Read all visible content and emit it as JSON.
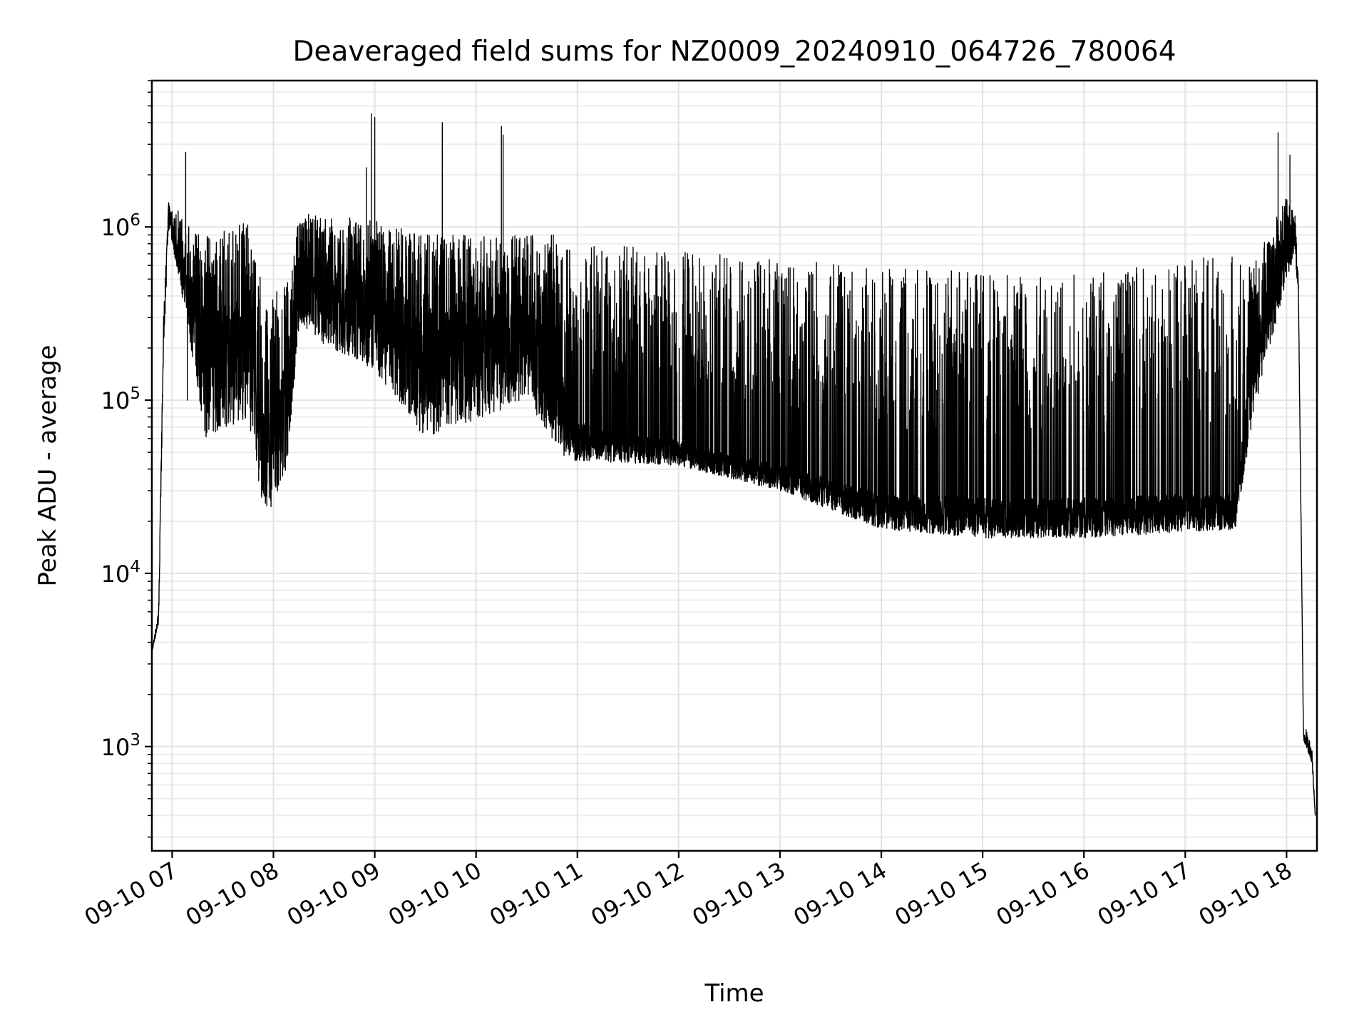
{
  "chart_data": {
    "type": "line",
    "title": "Deaveraged field sums for NZ0009_20240910_064726_780064",
    "xlabel": "Time",
    "ylabel": "Peak ADU - average",
    "yscale": "log",
    "xlim": [
      "2024-09-10 06:48",
      "2024-09-10 18:18"
    ],
    "ylim": [
      250,
      7000000
    ],
    "grid": true,
    "line_color": "#000000",
    "x_ticks": [
      {
        "t": "2024-09-10 07:00",
        "label": "09-10 07"
      },
      {
        "t": "2024-09-10 08:00",
        "label": "09-10 08"
      },
      {
        "t": "2024-09-10 09:00",
        "label": "09-10 09"
      },
      {
        "t": "2024-09-10 10:00",
        "label": "09-10 10"
      },
      {
        "t": "2024-09-10 11:00",
        "label": "09-10 11"
      },
      {
        "t": "2024-09-10 12:00",
        "label": "09-10 12"
      },
      {
        "t": "2024-09-10 13:00",
        "label": "09-10 13"
      },
      {
        "t": "2024-09-10 14:00",
        "label": "09-10 14"
      },
      {
        "t": "2024-09-10 15:00",
        "label": "09-10 15"
      },
      {
        "t": "2024-09-10 16:00",
        "label": "09-10 16"
      },
      {
        "t": "2024-09-10 17:00",
        "label": "09-10 17"
      },
      {
        "t": "2024-09-10 18:00",
        "label": "09-10 18"
      }
    ],
    "y_ticks": [
      {
        "value": 1000,
        "base": "10",
        "exp": "3"
      },
      {
        "value": 10000,
        "base": "10",
        "exp": "4"
      },
      {
        "value": 100000,
        "base": "10",
        "exp": "5"
      },
      {
        "value": 1000000,
        "base": "10",
        "exp": "6"
      }
    ],
    "series": [
      {
        "envelope": [
          {
            "t": "2024-09-10 06:48",
            "low": 3500,
            "base": 3500,
            "high": 3500
          },
          {
            "t": "2024-09-10 06:52",
            "low": 5000,
            "base": 6000,
            "high": 6000
          },
          {
            "t": "2024-09-10 06:55",
            "low": 200000,
            "base": 300000,
            "high": 300000
          },
          {
            "t": "2024-09-10 06:58",
            "low": 1000000,
            "base": 1300000,
            "high": 1500000
          },
          {
            "t": "2024-09-10 07:05",
            "low": 450000,
            "base": 700000,
            "high": 1200000
          },
          {
            "t": "2024-09-10 07:20",
            "low": 60000,
            "base": 250000,
            "high": 900000
          },
          {
            "t": "2024-09-10 07:45",
            "low": 80000,
            "base": 300000,
            "high": 1100000
          },
          {
            "t": "2024-09-10 07:55",
            "low": 20000,
            "base": 60000,
            "high": 400000
          },
          {
            "t": "2024-09-10 08:08",
            "low": 40000,
            "base": 150000,
            "high": 500000
          },
          {
            "t": "2024-09-10 08:15",
            "low": 250000,
            "base": 600000,
            "high": 1200000
          },
          {
            "t": "2024-09-10 09:00",
            "low": 150000,
            "base": 450000,
            "high": 1100000
          },
          {
            "t": "2024-09-10 09:30",
            "low": 60000,
            "base": 250000,
            "high": 900000
          },
          {
            "t": "2024-09-10 10:30",
            "low": 100000,
            "base": 350000,
            "high": 900000
          },
          {
            "t": "2024-09-10 10:50",
            "low": 50000,
            "base": 200000,
            "high": 900000
          },
          {
            "t": "2024-09-10 10:55",
            "low": 45000,
            "base": 70000,
            "high": 800000
          },
          {
            "t": "2024-09-10 12:00",
            "low": 42000,
            "base": 55000,
            "high": 750000
          },
          {
            "t": "2024-09-10 13:00",
            "low": 30000,
            "base": 40000,
            "high": 650000
          },
          {
            "t": "2024-09-10 14:00",
            "low": 18000,
            "base": 27000,
            "high": 600000
          },
          {
            "t": "2024-09-10 15:00",
            "low": 16000,
            "base": 25000,
            "high": 550000
          },
          {
            "t": "2024-09-10 16:00",
            "low": 16000,
            "base": 25000,
            "high": 550000
          },
          {
            "t": "2024-09-10 17:30",
            "low": 18000,
            "base": 27000,
            "high": 700000
          },
          {
            "t": "2024-09-10 17:40",
            "low": 80000,
            "base": 200000,
            "high": 600000
          },
          {
            "t": "2024-09-10 18:00",
            "low": 500000,
            "base": 1000000,
            "high": 1500000
          },
          {
            "t": "2024-09-10 18:05",
            "low": 700000,
            "base": 1000000,
            "high": 1200000
          },
          {
            "t": "2024-09-10 18:07",
            "low": 400000,
            "base": 500000,
            "high": 500000
          },
          {
            "t": "2024-09-10 18:10",
            "low": 1100,
            "base": 1200,
            "high": 1400
          },
          {
            "t": "2024-09-10 18:15",
            "low": 800,
            "base": 900,
            "high": 1000
          },
          {
            "t": "2024-09-10 18:17",
            "low": 400,
            "base": 400,
            "high": 400
          }
        ],
        "spikes": [
          {
            "t": "2024-09-10 07:08",
            "value": 2700000
          },
          {
            "t": "2024-09-10 07:09",
            "value": 100000
          },
          {
            "t": "2024-09-10 08:55",
            "value": 2200000
          },
          {
            "t": "2024-09-10 08:58",
            "value": 4500000
          },
          {
            "t": "2024-09-10 09:00",
            "value": 4300000
          },
          {
            "t": "2024-09-10 09:40",
            "value": 4000000
          },
          {
            "t": "2024-09-10 10:15",
            "value": 3800000
          },
          {
            "t": "2024-09-10 10:16",
            "value": 3400000
          },
          {
            "t": "2024-09-10 17:55",
            "value": 3500000
          },
          {
            "t": "2024-09-10 18:02",
            "value": 2600000
          }
        ]
      }
    ]
  }
}
